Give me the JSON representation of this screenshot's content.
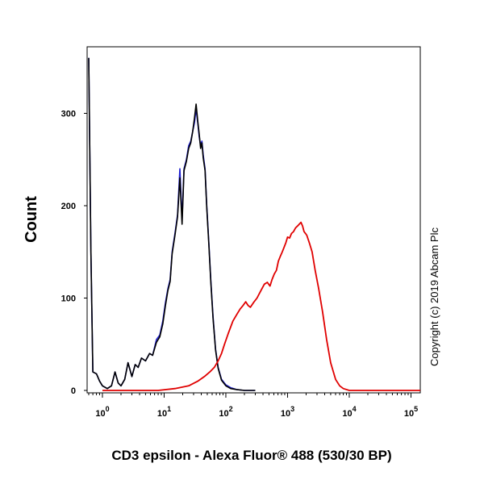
{
  "chart_data": {
    "type": "line",
    "title": "",
    "xlabel": "CD3 epsilon - Alexa Fluor® 488 (530/30 BP)",
    "ylabel": "Count",
    "x_scale": "log",
    "xlim": [
      0.6,
      250000
    ],
    "ylim": [
      0,
      360
    ],
    "grid": false,
    "legend": "none",
    "y_ticks": [
      0,
      100,
      200,
      300
    ],
    "y_tick_labels": [
      "0",
      "100",
      "200",
      "300"
    ],
    "x_tick_labels": [
      {
        "base": "10",
        "exp": "0",
        "value": 1
      },
      {
        "base": "10",
        "exp": "1",
        "value": 10
      },
      {
        "base": "10",
        "exp": "2",
        "value": 100
      },
      {
        "base": "10",
        "exp": "3",
        "value": 1000
      },
      {
        "base": "10",
        "exp": "4",
        "value": 10000
      },
      {
        "base": "10",
        "exp": "5",
        "value": 100000
      }
    ],
    "annotation": "Copyright (c) 2019 Abcam Plc",
    "series": [
      {
        "color": "#1f1fd0",
        "points": [
          [
            0.6,
            360
          ],
          [
            0.65,
            150
          ],
          [
            0.7,
            20
          ],
          [
            0.8,
            18
          ],
          [
            0.9,
            10
          ],
          [
            1,
            5
          ],
          [
            1.2,
            2
          ],
          [
            1.4,
            5
          ],
          [
            1.6,
            20
          ],
          [
            1.8,
            8
          ],
          [
            2,
            5
          ],
          [
            2.3,
            12
          ],
          [
            2.6,
            30
          ],
          [
            3,
            15
          ],
          [
            3.4,
            28
          ],
          [
            3.8,
            25
          ],
          [
            4.3,
            35
          ],
          [
            5,
            32
          ],
          [
            5.8,
            40
          ],
          [
            6.5,
            38
          ],
          [
            7.5,
            55
          ],
          [
            8.5,
            60
          ],
          [
            9.5,
            75
          ],
          [
            10.5,
            95
          ],
          [
            11.5,
            110
          ],
          [
            12.5,
            120
          ],
          [
            13.5,
            150
          ],
          [
            15,
            170
          ],
          [
            16.5,
            190
          ],
          [
            18,
            240
          ],
          [
            19.5,
            185
          ],
          [
            21,
            240
          ],
          [
            23,
            250
          ],
          [
            25,
            265
          ],
          [
            27,
            270
          ],
          [
            29,
            280
          ],
          [
            31,
            290
          ],
          [
            33,
            305
          ],
          [
            35,
            290
          ],
          [
            37,
            275
          ],
          [
            39,
            265
          ],
          [
            41,
            270
          ],
          [
            43,
            255
          ],
          [
            46,
            240
          ],
          [
            49,
            200
          ],
          [
            53,
            160
          ],
          [
            57,
            120
          ],
          [
            62,
            80
          ],
          [
            68,
            45
          ],
          [
            75,
            25
          ],
          [
            85,
            12
          ],
          [
            100,
            6
          ],
          [
            120,
            3
          ],
          [
            150,
            1
          ],
          [
            200,
            0
          ],
          [
            300,
            0
          ]
        ]
      },
      {
        "color": "#000000",
        "points": [
          [
            0.6,
            360
          ],
          [
            0.65,
            150
          ],
          [
            0.7,
            20
          ],
          [
            0.8,
            18
          ],
          [
            0.9,
            10
          ],
          [
            1,
            5
          ],
          [
            1.2,
            2
          ],
          [
            1.4,
            5
          ],
          [
            1.6,
            20
          ],
          [
            1.8,
            8
          ],
          [
            2,
            5
          ],
          [
            2.3,
            12
          ],
          [
            2.6,
            30
          ],
          [
            3,
            15
          ],
          [
            3.4,
            28
          ],
          [
            3.8,
            25
          ],
          [
            4.3,
            35
          ],
          [
            5,
            32
          ],
          [
            5.8,
            40
          ],
          [
            6.5,
            38
          ],
          [
            7.5,
            52
          ],
          [
            8.5,
            58
          ],
          [
            9.5,
            72
          ],
          [
            10.5,
            92
          ],
          [
            11.5,
            108
          ],
          [
            12.5,
            118
          ],
          [
            13.5,
            148
          ],
          [
            15,
            168
          ],
          [
            16.5,
            188
          ],
          [
            18,
            230
          ],
          [
            19.5,
            180
          ],
          [
            21,
            238
          ],
          [
            23,
            248
          ],
          [
            25,
            262
          ],
          [
            27,
            268
          ],
          [
            29,
            280
          ],
          [
            31,
            295
          ],
          [
            33,
            310
          ],
          [
            35,
            292
          ],
          [
            37,
            278
          ],
          [
            39,
            262
          ],
          [
            41,
            268
          ],
          [
            43,
            252
          ],
          [
            46,
            238
          ],
          [
            49,
            198
          ],
          [
            53,
            158
          ],
          [
            57,
            118
          ],
          [
            62,
            78
          ],
          [
            68,
            44
          ],
          [
            75,
            24
          ],
          [
            85,
            11
          ],
          [
            100,
            5
          ],
          [
            120,
            2
          ],
          [
            150,
            1
          ],
          [
            200,
            0
          ],
          [
            300,
            0
          ]
        ]
      },
      {
        "color": "#e00000",
        "points": [
          [
            1,
            0
          ],
          [
            3,
            0
          ],
          [
            8,
            0
          ],
          [
            15,
            2
          ],
          [
            25,
            5
          ],
          [
            35,
            10
          ],
          [
            45,
            15
          ],
          [
            55,
            20
          ],
          [
            65,
            25
          ],
          [
            75,
            32
          ],
          [
            85,
            40
          ],
          [
            95,
            50
          ],
          [
            110,
            62
          ],
          [
            130,
            75
          ],
          [
            150,
            82
          ],
          [
            170,
            88
          ],
          [
            190,
            92
          ],
          [
            210,
            96
          ],
          [
            230,
            92
          ],
          [
            250,
            90
          ],
          [
            280,
            95
          ],
          [
            320,
            100
          ],
          [
            370,
            108
          ],
          [
            420,
            115
          ],
          [
            470,
            117
          ],
          [
            520,
            113
          ],
          [
            560,
            120
          ],
          [
            610,
            126
          ],
          [
            660,
            130
          ],
          [
            710,
            140
          ],
          [
            760,
            145
          ],
          [
            820,
            150
          ],
          [
            880,
            155
          ],
          [
            940,
            160
          ],
          [
            1000,
            166
          ],
          [
            1080,
            165
          ],
          [
            1160,
            170
          ],
          [
            1250,
            172
          ],
          [
            1350,
            176
          ],
          [
            1450,
            178
          ],
          [
            1550,
            180
          ],
          [
            1650,
            182
          ],
          [
            1750,
            178
          ],
          [
            1850,
            172
          ],
          [
            1950,
            170
          ],
          [
            2050,
            168
          ],
          [
            2250,
            160
          ],
          [
            2500,
            150
          ],
          [
            2800,
            130
          ],
          [
            3200,
            110
          ],
          [
            3700,
            85
          ],
          [
            4300,
            55
          ],
          [
            5000,
            30
          ],
          [
            6000,
            12
          ],
          [
            7000,
            5
          ],
          [
            8000,
            2
          ],
          [
            10000,
            0
          ],
          [
            20000,
            0
          ],
          [
            100000,
            0
          ],
          [
            250000,
            0
          ]
        ]
      }
    ]
  }
}
